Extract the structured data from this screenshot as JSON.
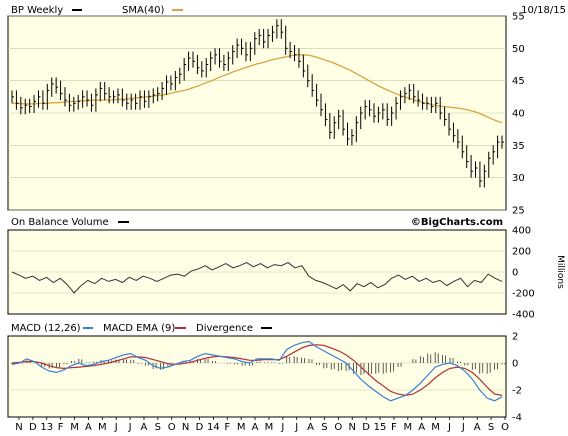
{
  "chart_data": [
    {
      "type": "line",
      "ticker": "BP",
      "title": "BP Weekly",
      "date": "10/18/15",
      "legend": [
        {
          "label": "BP Weekly",
          "color": "#000000"
        },
        {
          "label": "SMA(40)",
          "color": "#D9A441"
        }
      ],
      "ylim": [
        25,
        55
      ],
      "yticks": [
        25,
        30,
        35,
        40,
        45,
        50,
        55
      ],
      "x_labels": [
        "N",
        "D",
        "13",
        "F",
        "M",
        "A",
        "M",
        "J",
        "J",
        "A",
        "S",
        "O",
        "N",
        "D",
        "14",
        "F",
        "M",
        "A",
        "M",
        "J",
        "J",
        "A",
        "S",
        "O",
        "N",
        "D",
        "15",
        "F",
        "M",
        "A",
        "M",
        "J",
        "J",
        "A",
        "S",
        "O"
      ],
      "series": [
        {
          "name": "BP Weekly",
          "kind": "ohlc-bars",
          "values": [
            42.5,
            41.5,
            40.8,
            41.2,
            41.0,
            41.8,
            42.5,
            41.5,
            43.5,
            44.5,
            44.0,
            43.0,
            42.0,
            41.2,
            41.5,
            41.8,
            42.5,
            42.0,
            41.2,
            42.8,
            43.8,
            43.0,
            42.5,
            42.5,
            42.8,
            42.0,
            41.5,
            42.0,
            41.5,
            42.5,
            41.8,
            42.5,
            42.8,
            43.0,
            43.8,
            44.8,
            44.5,
            45.5,
            46.0,
            47.5,
            48.5,
            48.0,
            47.0,
            46.5,
            47.5,
            48.5,
            49.0,
            48.0,
            47.5,
            48.5,
            49.5,
            50.5,
            50.0,
            49.0,
            50.0,
            51.5,
            52.0,
            51.0,
            52.0,
            52.5,
            53.5,
            52.5,
            50.0,
            49.5,
            49.0,
            48.0,
            46.5,
            45.0,
            43.5,
            42.0,
            40.5,
            39.0,
            37.0,
            38.5,
            39.5,
            37.5,
            36.0,
            36.5,
            38.5,
            40.0,
            41.0,
            40.5,
            39.5,
            40.0,
            40.5,
            39.0,
            40.0,
            41.5,
            42.5,
            43.0,
            43.5,
            42.5,
            42.0,
            41.5,
            41.5,
            41.0,
            41.5,
            40.0,
            39.0,
            37.5,
            36.5,
            35.5,
            34.0,
            32.5,
            31.0,
            31.5,
            29.5,
            31.0,
            33.0,
            34.0,
            35.5,
            35.5
          ]
        },
        {
          "name": "SMA(40)",
          "kind": "line",
          "values": [
            41.5,
            41.5,
            41.4,
            41.4,
            41.4,
            41.5,
            41.5,
            41.6,
            41.6,
            41.7,
            41.8,
            41.8,
            41.9,
            41.9,
            42.0,
            42.0,
            42.0,
            42.0,
            42.1,
            42.1,
            42.2,
            42.3,
            42.4,
            42.5,
            42.6,
            42.7,
            42.8,
            43.0,
            43.2,
            43.4,
            43.6,
            43.9,
            44.2,
            44.6,
            44.9,
            45.3,
            45.7,
            46.0,
            46.4,
            46.7,
            47.0,
            47.3,
            47.6,
            47.8,
            48.1,
            48.3,
            48.5,
            48.7,
            48.9,
            49.0,
            49.0,
            48.9,
            48.7,
            48.4,
            48.1,
            47.8,
            47.4,
            47.0,
            46.6,
            46.1,
            45.6,
            45.1,
            44.6,
            44.1,
            43.7,
            43.3,
            42.9,
            42.6,
            42.3,
            42.0,
            41.7,
            41.5,
            41.3,
            41.1,
            41.0,
            40.9,
            40.8,
            40.7,
            40.5,
            40.3,
            40.0,
            39.6,
            39.2,
            38.8,
            38.5
          ]
        }
      ]
    },
    {
      "type": "line",
      "title": "On Balance Volume",
      "credit": "©BigCharts.com",
      "ylabel": "Millions",
      "ylim": [
        -400,
        400
      ],
      "yticks": [
        400,
        200,
        0,
        -200,
        -400
      ],
      "series": [
        {
          "name": "On Balance Volume",
          "values": [
            0,
            -30,
            -60,
            -40,
            -80,
            -50,
            -100,
            -60,
            -120,
            -200,
            -130,
            -80,
            -110,
            -60,
            -90,
            -70,
            -100,
            -50,
            -80,
            -40,
            -60,
            -90,
            -60,
            -30,
            -20,
            -40,
            10,
            30,
            60,
            20,
            50,
            80,
            40,
            60,
            90,
            50,
            80,
            40,
            70,
            60,
            90,
            40,
            60,
            -40,
            -80,
            -100,
            -130,
            -160,
            -120,
            -180,
            -110,
            -140,
            -100,
            -150,
            -120,
            -60,
            -30,
            -70,
            -40,
            -90,
            -60,
            -100,
            -80,
            -130,
            -90,
            -60,
            -140,
            -80,
            -100,
            -20,
            -60,
            -90
          ]
        }
      ]
    },
    {
      "type": "line",
      "title": "MACD (12,26)",
      "ylim": [
        -4,
        2
      ],
      "yticks": [
        2,
        0,
        -2,
        -4
      ],
      "legend": [
        {
          "label": "MACD (12,26)",
          "color": "#000000"
        },
        {
          "label": "MACD EMA (9)",
          "color": "#3A7FD5"
        },
        {
          "label": "Divergence",
          "color": "#B0303A"
        }
      ],
      "series": [
        {
          "name": "MACD (12,26)",
          "values": [
            -0.1,
            0.0,
            0.3,
            0.1,
            -0.3,
            -0.6,
            -0.7,
            -0.5,
            -0.2,
            0.0,
            -0.2,
            -0.1,
            0.1,
            0.2,
            0.4,
            0.6,
            0.7,
            0.4,
            0.2,
            -0.2,
            -0.4,
            -0.3,
            -0.1,
            0.1,
            0.2,
            0.5,
            0.7,
            0.6,
            0.5,
            0.4,
            0.3,
            0.1,
            0.0,
            0.3,
            0.3,
            0.3,
            0.2,
            1.0,
            1.3,
            1.5,
            1.6,
            1.2,
            0.9,
            0.6,
            0.3,
            0.0,
            -0.6,
            -1.2,
            -1.7,
            -2.1,
            -2.5,
            -2.8,
            -2.6,
            -2.4,
            -2.0,
            -1.5,
            -0.9,
            -0.3,
            -0.1,
            0.0,
            -0.2,
            -0.6,
            -1.2,
            -2.0,
            -2.6,
            -2.8,
            -2.5
          ]
        },
        {
          "name": "MACD EMA (9)",
          "values": [
            0.0,
            0.05,
            0.1,
            0.1,
            0.0,
            -0.2,
            -0.35,
            -0.4,
            -0.35,
            -0.3,
            -0.25,
            -0.2,
            -0.1,
            0.0,
            0.15,
            0.3,
            0.45,
            0.45,
            0.4,
            0.25,
            0.1,
            -0.05,
            -0.1,
            -0.05,
            0.05,
            0.2,
            0.35,
            0.45,
            0.5,
            0.45,
            0.4,
            0.3,
            0.2,
            0.2,
            0.25,
            0.25,
            0.25,
            0.5,
            0.8,
            1.1,
            1.3,
            1.35,
            1.3,
            1.1,
            0.9,
            0.6,
            0.2,
            -0.3,
            -0.8,
            -1.3,
            -1.7,
            -2.1,
            -2.3,
            -2.4,
            -2.3,
            -2.0,
            -1.6,
            -1.1,
            -0.7,
            -0.4,
            -0.3,
            -0.4,
            -0.7,
            -1.2,
            -1.8,
            -2.3,
            -2.4
          ]
        },
        {
          "name": "Divergence",
          "kind": "histogram",
          "values": [
            -0.1,
            -0.05,
            0.2,
            0.0,
            -0.3,
            -0.4,
            -0.35,
            -0.1,
            0.15,
            0.3,
            0.05,
            0.1,
            0.2,
            0.2,
            0.25,
            0.3,
            0.25,
            -0.05,
            -0.2,
            -0.45,
            -0.5,
            -0.25,
            0.0,
            0.15,
            0.15,
            0.3,
            0.35,
            0.15,
            0.0,
            -0.05,
            -0.1,
            -0.2,
            -0.2,
            0.1,
            0.05,
            0.05,
            -0.05,
            0.5,
            0.5,
            0.4,
            0.3,
            -0.15,
            -0.4,
            -0.5,
            -0.6,
            -0.6,
            -0.8,
            -0.9,
            -0.9,
            -0.8,
            -0.8,
            -0.7,
            -0.3,
            0.0,
            0.3,
            0.5,
            0.7,
            0.8,
            0.6,
            0.4,
            0.1,
            -0.2,
            -0.5,
            -0.8,
            -0.8,
            -0.5,
            -0.1
          ]
        }
      ]
    }
  ]
}
